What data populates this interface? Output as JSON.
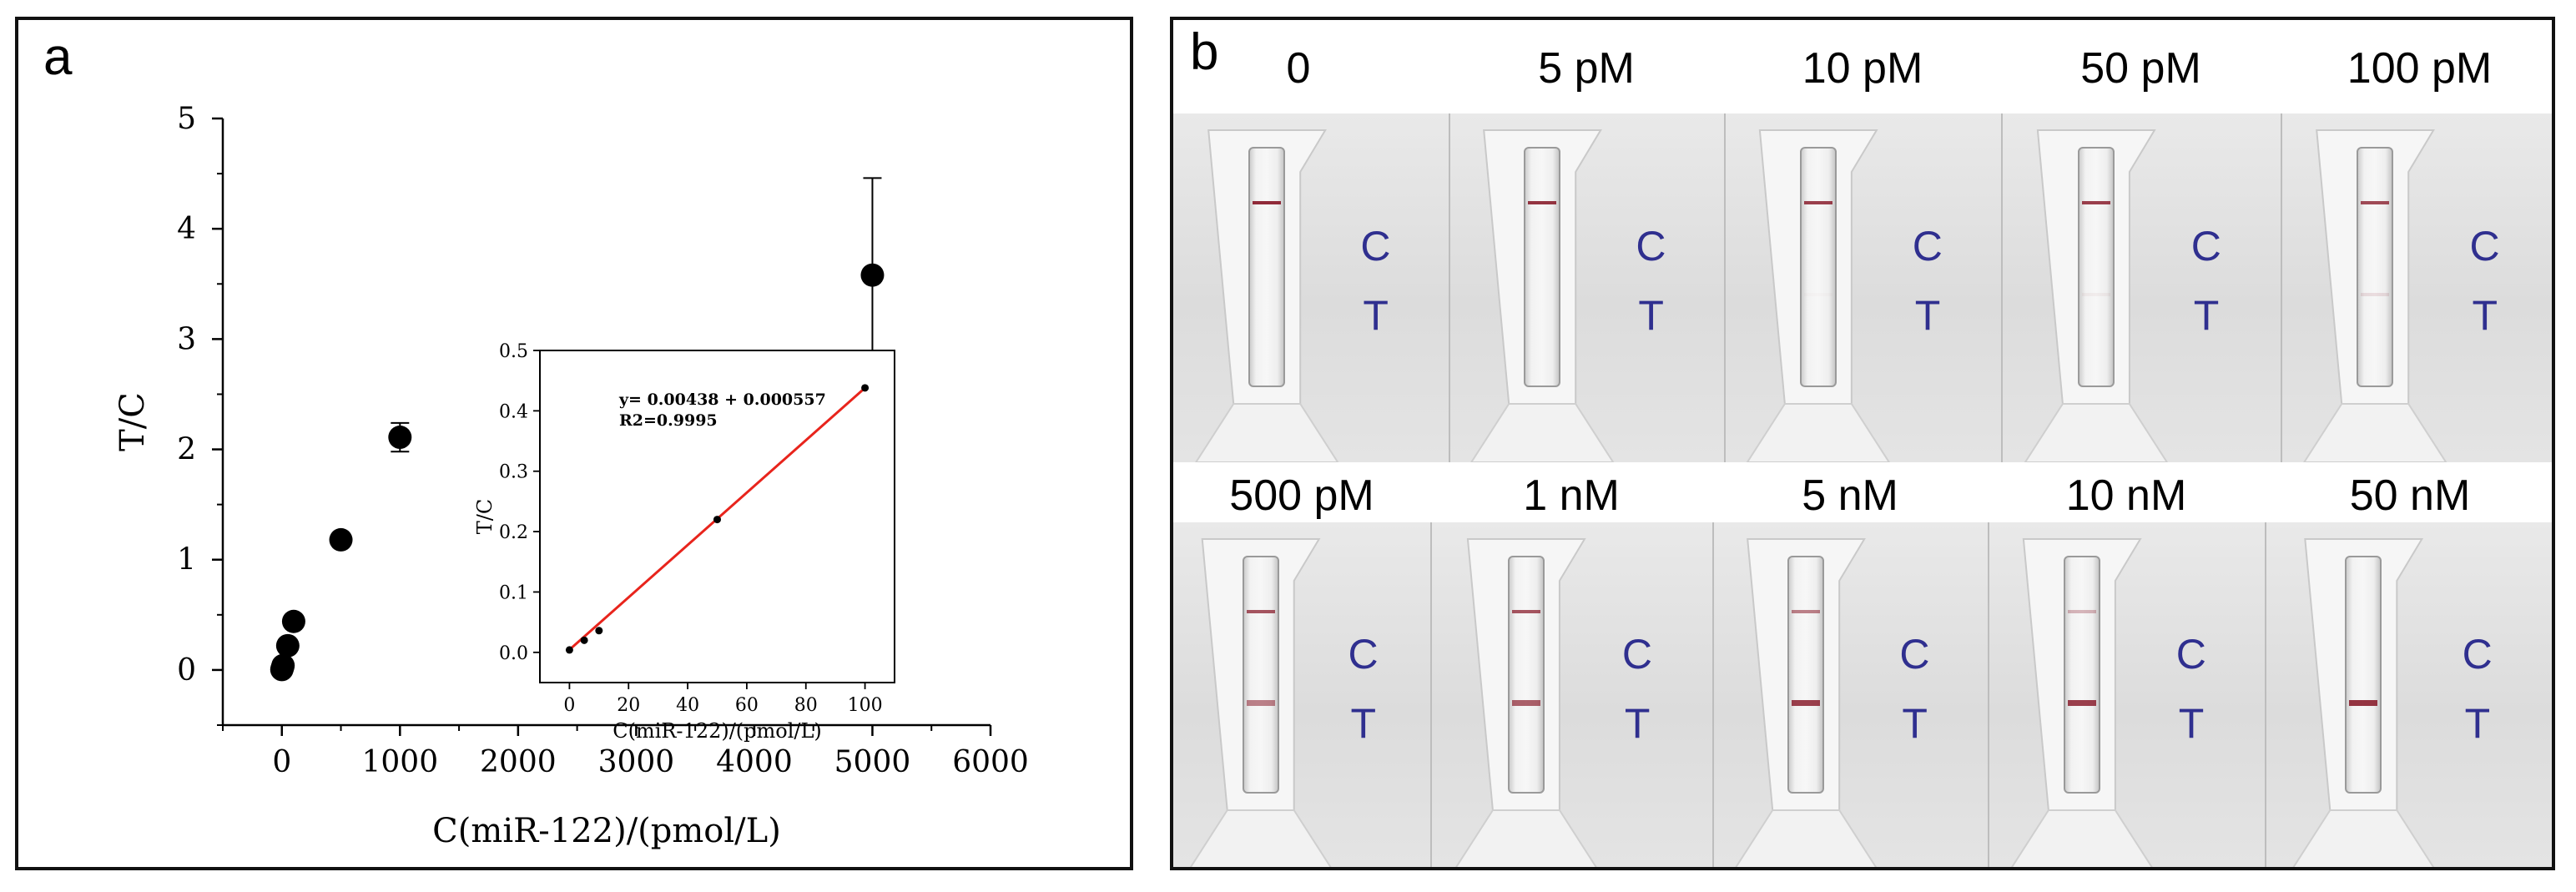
{
  "panel_a": {
    "letter": "a"
  },
  "panel_b": {
    "letter": "b"
  },
  "chart_data": [
    {
      "type": "scatter",
      "title": "",
      "xlabel": "C(miR-122)/(pmol/L)",
      "ylabel": "T/C",
      "xlim": [
        -500,
        6000
      ],
      "ylim": [
        -0.5,
        5
      ],
      "x_ticks": [
        0,
        1000,
        2000,
        3000,
        4000,
        5000,
        6000
      ],
      "y_ticks": [
        0,
        1,
        2,
        3,
        4,
        5
      ],
      "grid": false,
      "points": [
        {
          "x": 0,
          "y": 0.004,
          "err": 0.02
        },
        {
          "x": 5,
          "y": 0.02,
          "err": 0.02
        },
        {
          "x": 10,
          "y": 0.04,
          "err": 0.02
        },
        {
          "x": 50,
          "y": 0.22,
          "err": 0.03
        },
        {
          "x": 100,
          "y": 0.44,
          "err": 0.03
        },
        {
          "x": 500,
          "y": 1.18,
          "err": 0.05
        },
        {
          "x": 1000,
          "y": 2.11,
          "err": 0.13
        },
        {
          "x": 5000,
          "y": 3.58,
          "err": 0.88
        }
      ]
    },
    {
      "type": "scatter",
      "title": "",
      "xlabel": "C(miR-122)/(pmol/L)",
      "ylabel": "T/C",
      "xlim": [
        -10,
        110
      ],
      "ylim": [
        -0.05,
        0.5
      ],
      "x_ticks": [
        0,
        20,
        40,
        60,
        80,
        100
      ],
      "y_ticks": [
        0.0,
        0.1,
        0.2,
        0.3,
        0.4,
        0.5
      ],
      "grid": false,
      "points": [
        {
          "x": 0,
          "y": 0.004
        },
        {
          "x": 5,
          "y": 0.02
        },
        {
          "x": 10,
          "y": 0.036
        },
        {
          "x": 50,
          "y": 0.22
        },
        {
          "x": 100,
          "y": 0.438
        }
      ],
      "fit_line": {
        "x": [
          0,
          100
        ],
        "y": [
          0.0044,
          0.438
        ],
        "color": "#e8241c"
      },
      "equation": "y= 0.00438 + 0.000557",
      "r2": "R2=0.9995"
    }
  ],
  "strips": {
    "row1": [
      {
        "label": "0",
        "control": 0.95,
        "test": 0.0
      },
      {
        "label": "5 pM",
        "control": 0.9,
        "test": 0.0
      },
      {
        "label": "10 pM",
        "control": 0.85,
        "test": 0.02
      },
      {
        "label": "50 pM",
        "control": 0.85,
        "test": 0.05
      },
      {
        "label": "100 pM",
        "control": 0.8,
        "test": 0.12
      }
    ],
    "row2": [
      {
        "label": "500 pM",
        "control": 0.75,
        "test": 0.55
      },
      {
        "label": "1 nM",
        "control": 0.75,
        "test": 0.7
      },
      {
        "label": "5 nM",
        "control": 0.55,
        "test": 0.85
      },
      {
        "label": "10 nM",
        "control": 0.3,
        "test": 0.85
      },
      {
        "label": "50 nM",
        "control": 0.0,
        "test": 0.9
      }
    ],
    "c_label": "C",
    "t_label": "T",
    "band_color": "#8a1f2e"
  }
}
